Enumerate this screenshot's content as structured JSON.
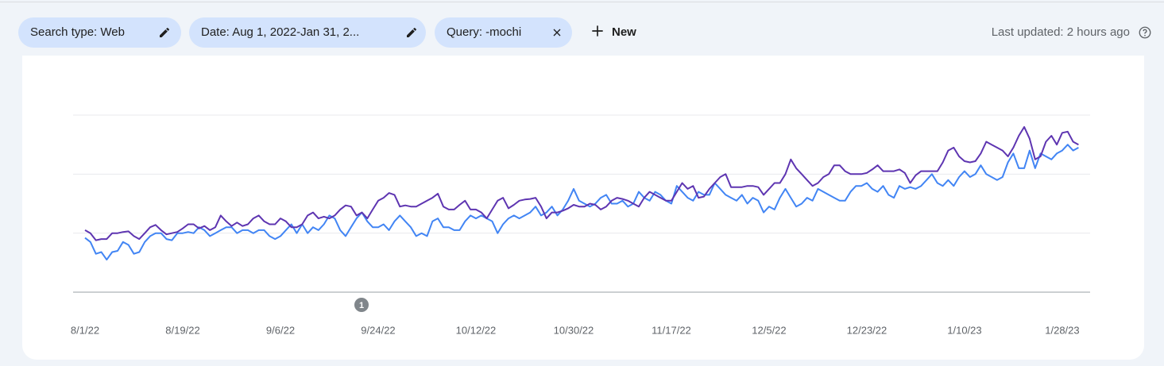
{
  "filters": {
    "chips": [
      "Search type: Web",
      "Date: Aug 1, 2022-Jan 31, 2...",
      "Query: -mochi"
    ],
    "new": "New",
    "last_updated": "Last updated: 2 hours ago"
  },
  "chart_data": {
    "type": "line",
    "categories": [
      "8/1/22",
      null,
      null,
      null,
      null,
      null,
      null,
      null,
      null,
      null,
      null,
      null,
      null,
      null,
      null,
      null,
      null,
      null,
      "8/19/22",
      null,
      null,
      null,
      null,
      null,
      null,
      null,
      null,
      null,
      null,
      null,
      null,
      null,
      null,
      null,
      null,
      null,
      "9/6/22",
      null,
      null,
      null,
      null,
      null,
      null,
      null,
      null,
      null,
      null,
      null,
      null,
      null,
      null,
      null,
      null,
      null,
      "9/24/22",
      null,
      null,
      null,
      null,
      null,
      null,
      null,
      null,
      null,
      null,
      null,
      null,
      null,
      null,
      null,
      null,
      null,
      "10/12/22",
      null,
      null,
      null,
      null,
      null,
      null,
      null,
      null,
      null,
      null,
      null,
      null,
      null,
      null,
      null,
      null,
      null,
      "10/30/22",
      null,
      null,
      null,
      null,
      null,
      null,
      null,
      null,
      null,
      null,
      null,
      null,
      null,
      null,
      null,
      null,
      null,
      "11/17/22",
      null,
      null,
      null,
      null,
      null,
      null,
      null,
      null,
      null,
      null,
      null,
      null,
      null,
      null,
      null,
      null,
      null,
      "12/5/22",
      null,
      null,
      null,
      null,
      null,
      null,
      null,
      null,
      null,
      null,
      null,
      null,
      null,
      null,
      null,
      null,
      null,
      "12/23/22",
      null,
      null,
      null,
      null,
      null,
      null,
      null,
      null,
      null,
      null,
      null,
      null,
      null,
      null,
      null,
      null,
      null,
      "1/10/23",
      null,
      null,
      null,
      null,
      null,
      null,
      null,
      null,
      null,
      null,
      null,
      null,
      null,
      null,
      null,
      null,
      null,
      "1/28/23",
      null,
      null,
      null
    ],
    "series": [
      {
        "color": "#5e35b1",
        "values": [
          1.05,
          1.0,
          0.88,
          0.9,
          0.9,
          1.0,
          1.0,
          1.02,
          1.03,
          0.95,
          0.9,
          1.0,
          1.1,
          1.14,
          1.05,
          0.98,
          1.0,
          1.02,
          1.08,
          1.15,
          1.15,
          1.08,
          1.12,
          1.05,
          1.1,
          1.3,
          1.2,
          1.12,
          1.18,
          1.12,
          1.15,
          1.25,
          1.3,
          1.2,
          1.15,
          1.15,
          1.25,
          1.2,
          1.1,
          1.1,
          1.15,
          1.3,
          1.35,
          1.25,
          1.28,
          1.25,
          1.3,
          1.4,
          1.47,
          1.45,
          1.3,
          1.35,
          1.25,
          1.4,
          1.55,
          1.6,
          1.68,
          1.65,
          1.45,
          1.47,
          1.45,
          1.45,
          1.5,
          1.55,
          1.6,
          1.67,
          1.45,
          1.4,
          1.4,
          1.48,
          1.55,
          1.4,
          1.4,
          1.35,
          1.25,
          1.4,
          1.55,
          1.6,
          1.42,
          1.48,
          1.55,
          1.57,
          1.58,
          1.6,
          1.45,
          1.25,
          1.35,
          1.35,
          1.38,
          1.42,
          1.48,
          1.45,
          1.45,
          1.5,
          1.48,
          1.4,
          1.45,
          1.55,
          1.6,
          1.58,
          1.55,
          1.5,
          1.45,
          1.6,
          1.7,
          1.65,
          1.6,
          1.55,
          1.55,
          1.7,
          1.85,
          1.75,
          1.8,
          1.6,
          1.62,
          1.75,
          1.85,
          1.95,
          2.0,
          1.78,
          1.78,
          1.78,
          1.8,
          1.8,
          1.78,
          1.65,
          1.75,
          1.85,
          1.85,
          2.0,
          2.25,
          2.1,
          2.0,
          1.9,
          1.8,
          1.85,
          1.95,
          2.0,
          2.15,
          2.15,
          2.05,
          2.0,
          2.0,
          2.0,
          2.02,
          2.08,
          2.15,
          2.05,
          2.05,
          2.05,
          2.08,
          2.02,
          1.85,
          1.98,
          2.05,
          2.05,
          2.05,
          2.05,
          2.2,
          2.4,
          2.45,
          2.3,
          2.22,
          2.2,
          2.22,
          2.35,
          2.55,
          2.5,
          2.45,
          2.4,
          2.3,
          2.45,
          2.65,
          2.8,
          2.6,
          2.25,
          2.3,
          2.55,
          2.65,
          2.5,
          2.7,
          2.72,
          2.55,
          2.5
        ]
      },
      {
        "color": "#4285f4",
        "values": [
          0.92,
          0.85,
          0.65,
          0.68,
          0.55,
          0.68,
          0.7,
          0.85,
          0.8,
          0.65,
          0.68,
          0.85,
          0.95,
          1.0,
          1.0,
          0.9,
          0.88,
          1.0,
          1.0,
          1.02,
          1.0,
          1.1,
          1.05,
          0.95,
          1.0,
          1.05,
          1.1,
          1.1,
          1.0,
          1.05,
          1.05,
          1.0,
          1.05,
          1.05,
          0.95,
          0.9,
          0.95,
          1.05,
          1.15,
          1.0,
          1.15,
          1.0,
          1.1,
          1.05,
          1.15,
          1.3,
          1.25,
          1.05,
          0.95,
          1.1,
          1.25,
          1.35,
          1.2,
          1.1,
          1.1,
          1.15,
          1.05,
          1.2,
          1.3,
          1.2,
          1.1,
          0.95,
          1.0,
          0.95,
          1.2,
          1.25,
          1.1,
          1.1,
          1.05,
          1.05,
          1.2,
          1.3,
          1.25,
          1.3,
          1.25,
          1.2,
          1.0,
          1.15,
          1.25,
          1.3,
          1.25,
          1.3,
          1.35,
          1.45,
          1.3,
          1.35,
          1.45,
          1.3,
          1.4,
          1.55,
          1.75,
          1.55,
          1.5,
          1.45,
          1.5,
          1.6,
          1.65,
          1.5,
          1.5,
          1.55,
          1.45,
          1.5,
          1.7,
          1.6,
          1.55,
          1.7,
          1.65,
          1.55,
          1.5,
          1.8,
          1.7,
          1.6,
          1.55,
          1.7,
          1.65,
          1.65,
          1.85,
          1.75,
          1.65,
          1.6,
          1.55,
          1.65,
          1.5,
          1.6,
          1.55,
          1.35,
          1.45,
          1.4,
          1.6,
          1.75,
          1.6,
          1.45,
          1.5,
          1.6,
          1.55,
          1.75,
          1.7,
          1.65,
          1.6,
          1.55,
          1.55,
          1.7,
          1.8,
          1.8,
          1.85,
          1.75,
          1.7,
          1.8,
          1.65,
          1.6,
          1.8,
          1.75,
          1.78,
          1.75,
          1.8,
          1.9,
          2.0,
          1.85,
          1.8,
          1.9,
          1.8,
          1.95,
          2.05,
          1.95,
          2.0,
          2.15,
          2.0,
          1.95,
          1.9,
          1.95,
          2.2,
          2.35,
          2.1,
          2.1,
          2.4,
          2.1,
          2.35,
          2.3,
          2.25,
          2.35,
          2.4,
          2.5,
          2.4,
          2.45
        ]
      }
    ],
    "ylim": [
      0,
      3
    ],
    "grid": true,
    "annotation": "1"
  }
}
